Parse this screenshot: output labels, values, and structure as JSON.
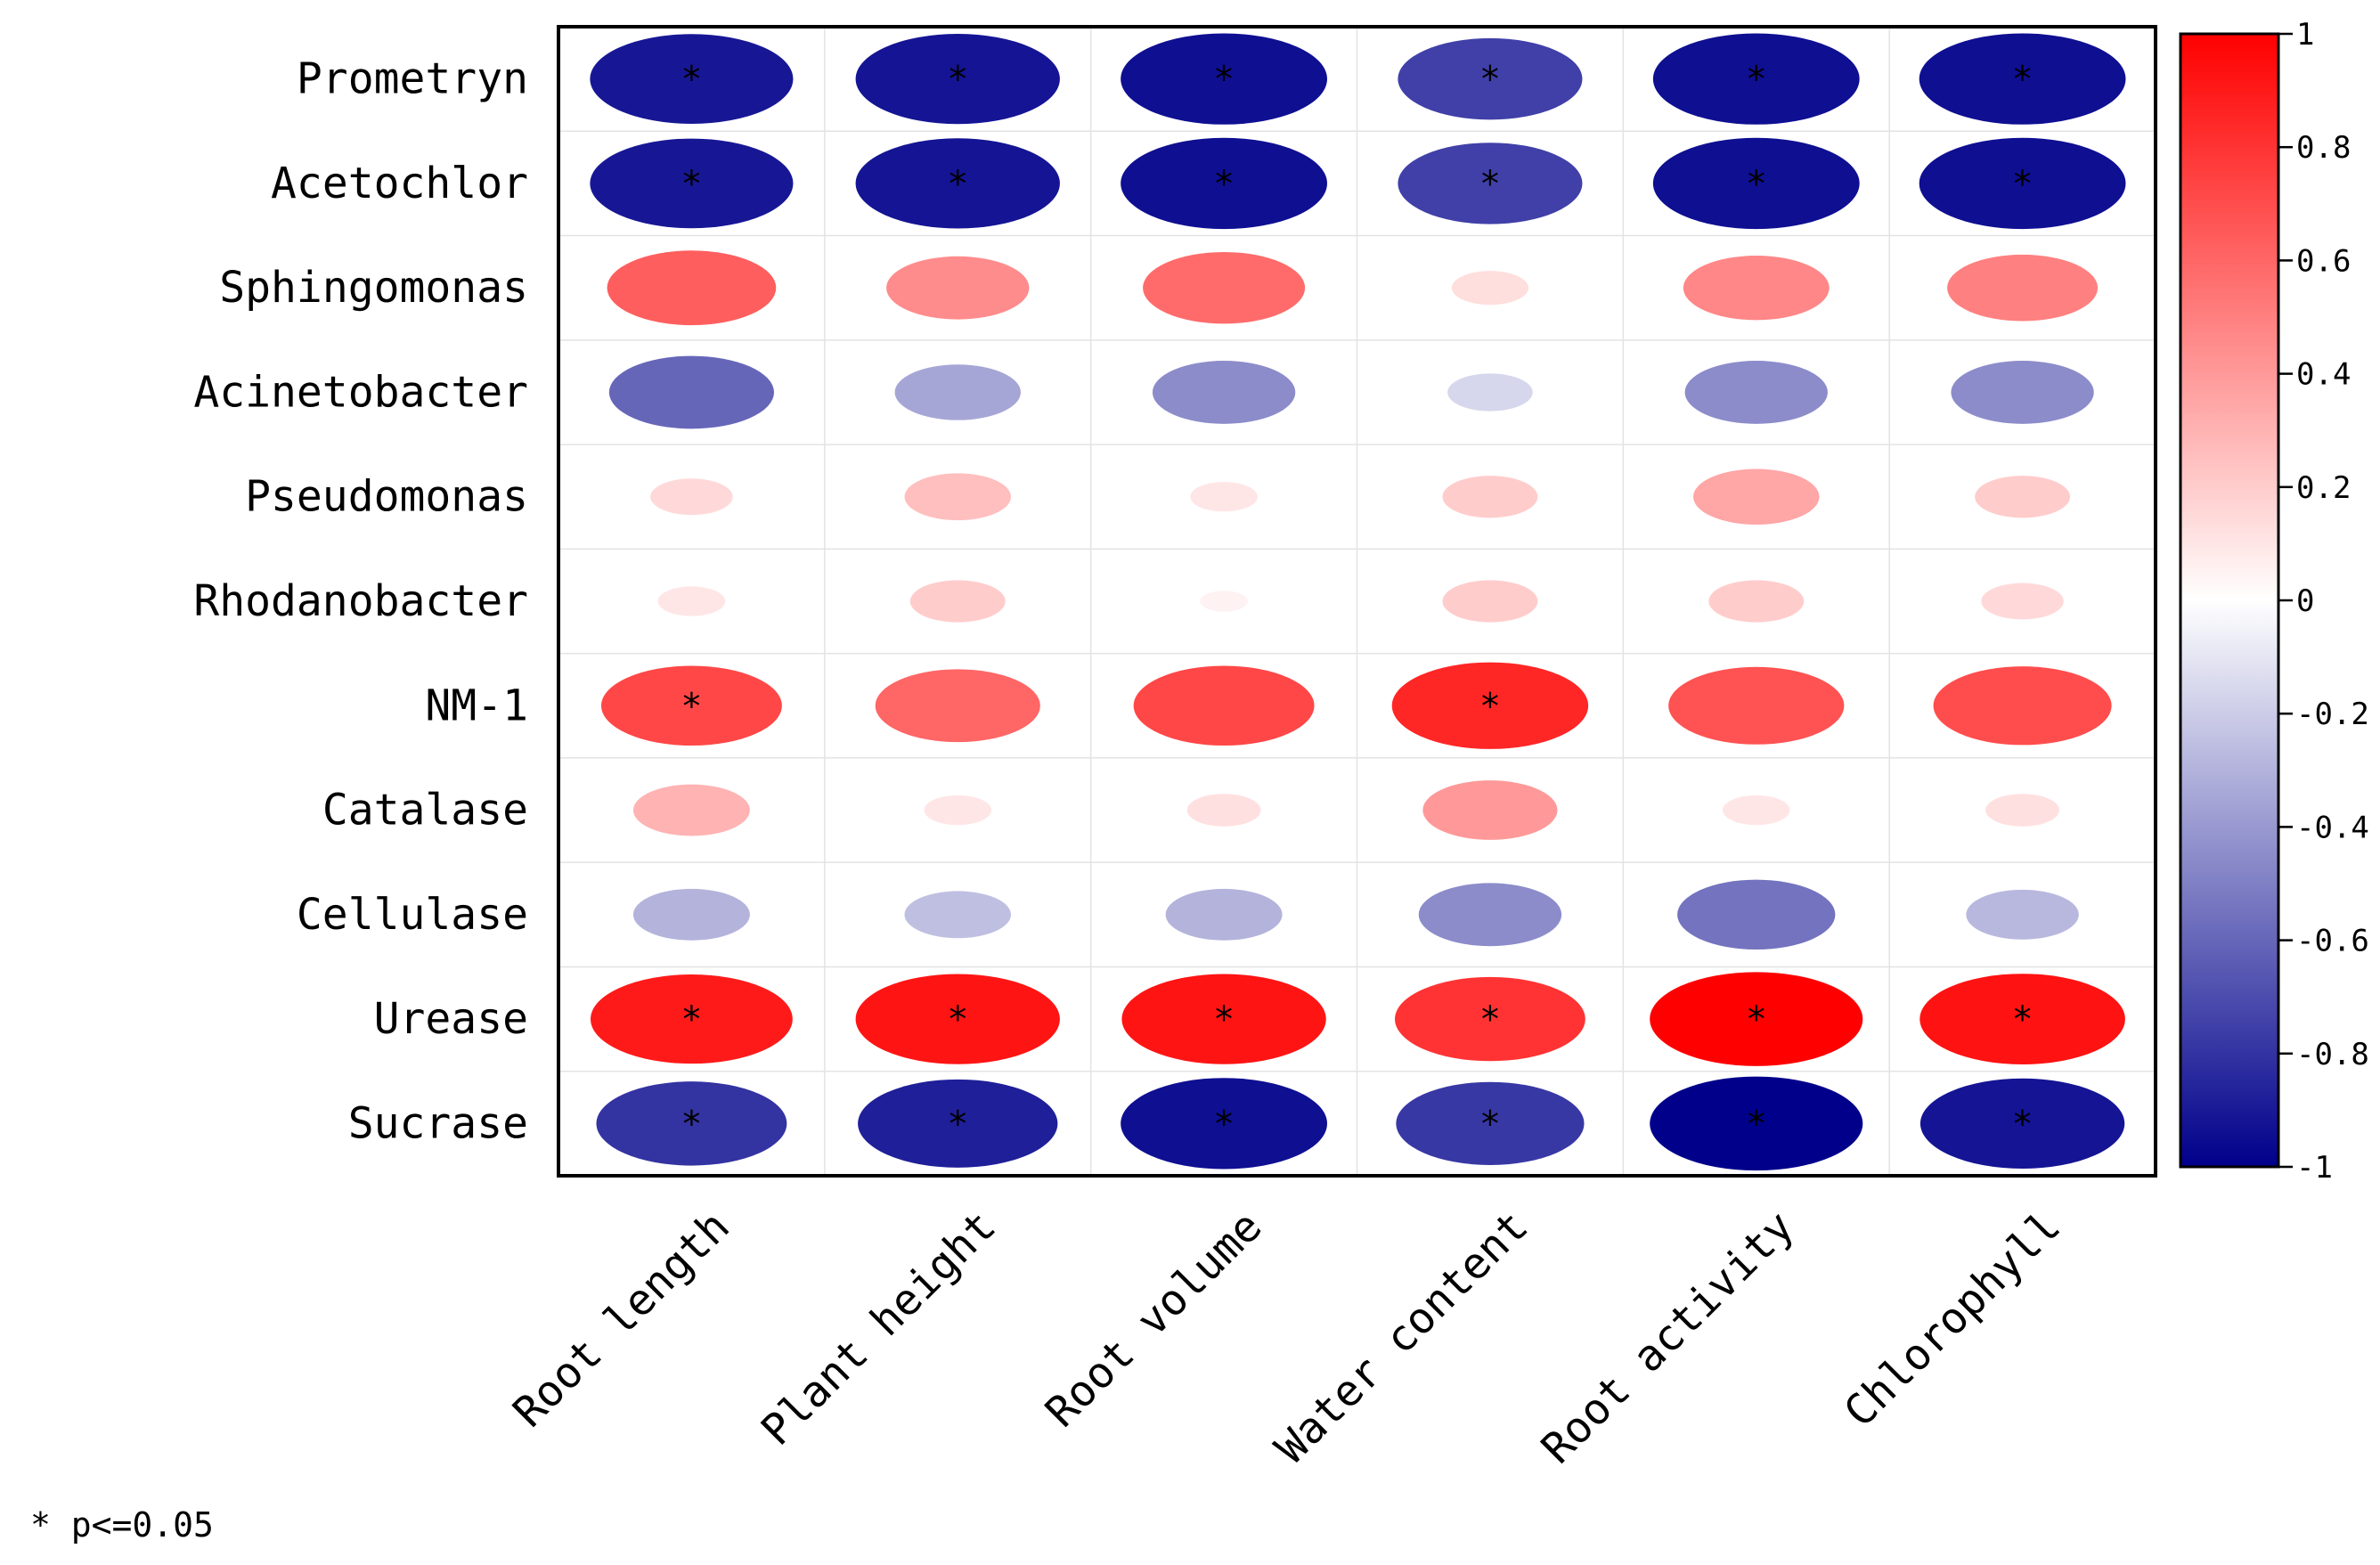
{
  "chart_data": {
    "type": "heatmap",
    "title": "",
    "rows": [
      "Prometryn",
      "Acetochlor",
      "Sphingomonas",
      "Acinetobacter",
      "Pseudomonas",
      "Rhodanobacter",
      "NM-1",
      "Catalase",
      "Cellulase",
      "Urease",
      "Sucrase"
    ],
    "columns": [
      "Root length",
      "Plant height",
      "Root volume",
      "Water content",
      "Root activity",
      "Chlorophyll"
    ],
    "values": [
      [
        -0.91,
        -0.92,
        -0.94,
        -0.75,
        -0.94,
        -0.94
      ],
      [
        -0.91,
        -0.92,
        -0.94,
        -0.75,
        -0.94,
        -0.94
      ],
      [
        0.63,
        0.45,
        0.58,
        0.13,
        0.47,
        0.5
      ],
      [
        -0.6,
        -0.35,
        -0.45,
        -0.16,
        -0.45,
        -0.45
      ],
      [
        0.15,
        0.25,
        0.1,
        0.2,
        0.35,
        0.2
      ],
      [
        0.1,
        0.2,
        0.05,
        0.2,
        0.2,
        0.15
      ],
      [
        0.72,
        0.6,
        0.72,
        0.85,
        0.68,
        0.7
      ],
      [
        0.3,
        0.1,
        0.12,
        0.4,
        0.1,
        0.12
      ],
      [
        -0.3,
        -0.25,
        -0.3,
        -0.45,
        -0.55,
        -0.28
      ],
      [
        0.9,
        0.92,
        0.92,
        0.8,
        1.0,
        0.93
      ],
      [
        -0.8,
        -0.88,
        -0.94,
        -0.78,
        -1.0,
        -0.92
      ]
    ],
    "significant": [
      [
        true,
        true,
        true,
        true,
        true,
        true
      ],
      [
        true,
        true,
        true,
        true,
        true,
        true
      ],
      [
        false,
        false,
        false,
        false,
        false,
        false
      ],
      [
        false,
        false,
        false,
        false,
        false,
        false
      ],
      [
        false,
        false,
        false,
        false,
        false,
        false
      ],
      [
        false,
        false,
        false,
        false,
        false,
        false
      ],
      [
        true,
        false,
        false,
        true,
        false,
        false
      ],
      [
        false,
        false,
        false,
        false,
        false,
        false
      ],
      [
        false,
        false,
        false,
        false,
        false,
        false
      ],
      [
        true,
        true,
        true,
        true,
        true,
        true
      ],
      [
        true,
        true,
        true,
        true,
        true,
        true
      ]
    ],
    "significance_marker": "*",
    "colorbar": {
      "range": [
        -1,
        1
      ],
      "ticks": [
        -1,
        -0.8,
        -0.6,
        -0.4,
        -0.2,
        0,
        0.2,
        0.4,
        0.6,
        0.8,
        1
      ],
      "tick_labels": [
        "-1",
        "-0.8",
        "-0.6",
        "-0.4",
        "-0.2",
        "0",
        "0.2",
        "0.4",
        "0.6",
        "0.8",
        "1"
      ],
      "colors": {
        "negative": "#00008b",
        "zero": "#ffffff",
        "positive": "#ff0000"
      }
    },
    "grid": true,
    "legend_position": "right"
  },
  "footnote": "* p<=0.05"
}
